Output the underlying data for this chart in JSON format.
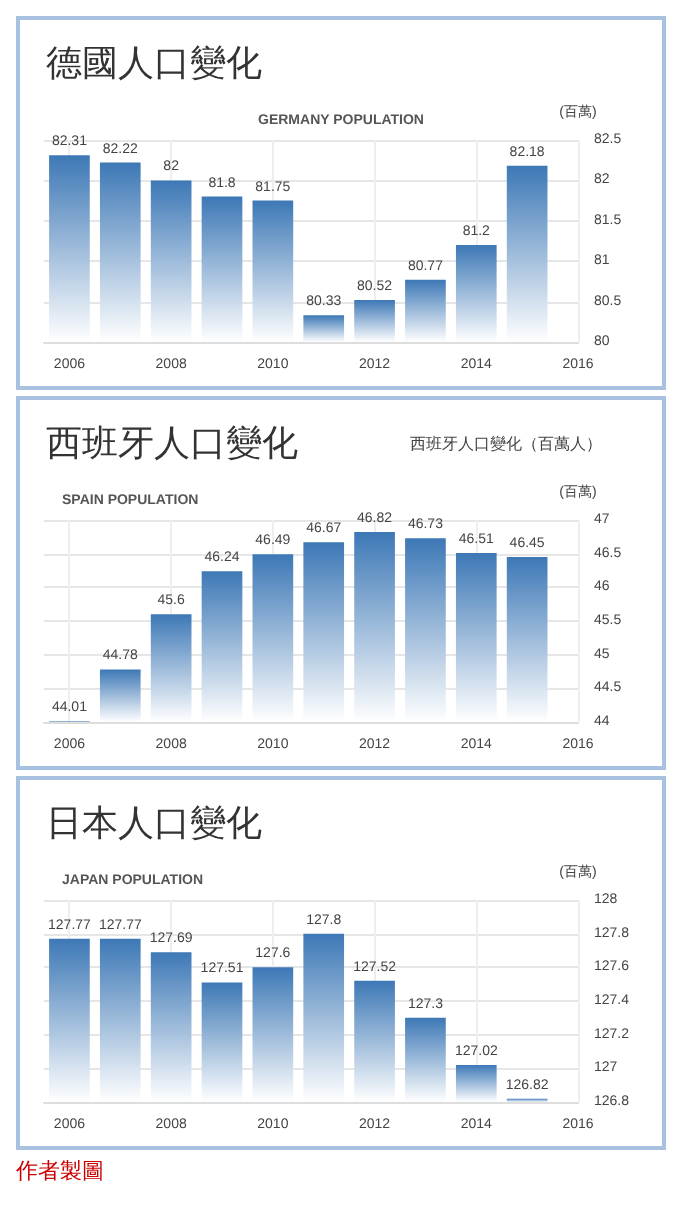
{
  "chart_data": [
    {
      "type": "bar",
      "title": "德國人口變化",
      "subtitle": "GERMANY POPULATION",
      "ylabel": "(百萬)",
      "x": [
        2006,
        2007,
        2008,
        2009,
        2010,
        2011,
        2012,
        2013,
        2014,
        2015
      ],
      "values": [
        82.31,
        82.22,
        82,
        81.8,
        81.75,
        80.33,
        80.52,
        80.77,
        81.2,
        82.18
      ],
      "color": "#3d78b6",
      "xlim": [
        2005.5,
        2016
      ],
      "xticks": [
        2006,
        2008,
        2010,
        2012,
        2014,
        2016
      ],
      "ylim": [
        80,
        82.5
      ],
      "yticks": [
        80,
        80.5,
        81,
        81.5,
        82,
        82.5
      ],
      "grid": true,
      "data_labels": true
    },
    {
      "type": "bar",
      "title": "西班牙人口變化",
      "subtitle": "SPAIN POPULATION",
      "ylabel": "(百萬)",
      "annotations": [
        "西班牙人口變化（百萬人）"
      ],
      "x": [
        2006,
        2007,
        2008,
        2009,
        2010,
        2011,
        2012,
        2013,
        2014,
        2015
      ],
      "values": [
        44.01,
        44.78,
        45.6,
        46.24,
        46.49,
        46.67,
        46.82,
        46.73,
        46.51,
        46.45
      ],
      "color": "#3d78b6",
      "xlim": [
        2005.5,
        2016
      ],
      "xticks": [
        2006,
        2008,
        2010,
        2012,
        2014,
        2016
      ],
      "ylim": [
        44,
        47
      ],
      "yticks": [
        44,
        44.5,
        45,
        45.5,
        46,
        46.5,
        47
      ],
      "grid": true,
      "data_labels": true
    },
    {
      "type": "bar",
      "title": "日本人口變化",
      "subtitle": "JAPAN POPULATION",
      "ylabel": "(百萬)",
      "annotations": [
        "作者製圖"
      ],
      "x": [
        2006,
        2007,
        2008,
        2009,
        2010,
        2011,
        2012,
        2013,
        2014,
        2015
      ],
      "values": [
        127.77,
        127.77,
        127.69,
        127.51,
        127.6,
        127.8,
        127.52,
        127.3,
        127.02,
        126.82
      ],
      "color": "#3d78b6",
      "xlim": [
        2005.5,
        2016
      ],
      "xticks": [
        2006,
        2008,
        2010,
        2012,
        2014,
        2016
      ],
      "ylim": [
        126.8,
        128
      ],
      "yticks": [
        126.8,
        127,
        127.2,
        127.4,
        127.6,
        127.8,
        128
      ],
      "grid": true,
      "data_labels": true
    }
  ]
}
